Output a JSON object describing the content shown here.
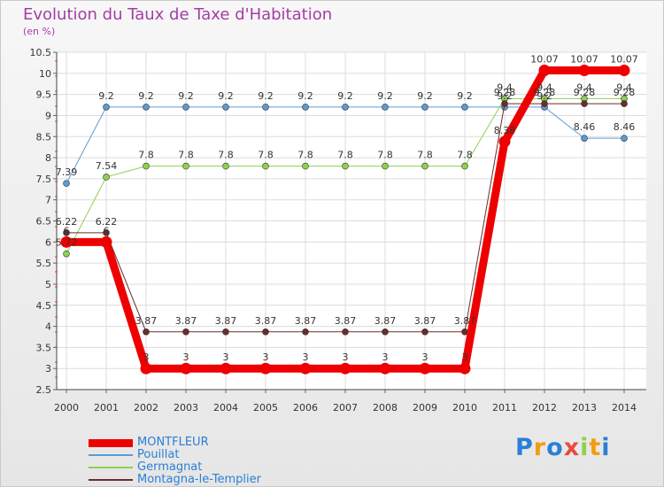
{
  "title": "Evolution du Taux de Taxe d'Habitation",
  "subtitle": "(en %)",
  "colors": {
    "title": "#a63ca6",
    "legend_text": "#2a7fd6",
    "MONTFLEUR": "#ee0000",
    "Pouillat": "#5b9bd5",
    "Germagnat": "#8ed14f",
    "Montagna-le-Templier": "#6b2c2c"
  },
  "logo": {
    "text": "Proxiti",
    "letters": [
      "P",
      "r",
      "o",
      "x",
      "i",
      "t",
      "i"
    ]
  },
  "chart_data": {
    "type": "line",
    "title": "Evolution du Taux de Taxe d'Habitation",
    "ylabel": "(en %)",
    "xlabel": "",
    "ylim": [
      2.5,
      10.5
    ],
    "yticks": [
      "2.5",
      "3",
      "3.5",
      "4",
      "4.5",
      "5",
      "5.5",
      "6",
      "6.5",
      "7",
      "7.5",
      "8",
      "8.5",
      "9",
      "9.5",
      "10",
      "10.5"
    ],
    "categories": [
      "2000",
      "2001",
      "2002",
      "2003",
      "2004",
      "2005",
      "2006",
      "2007",
      "2008",
      "2009",
      "2010",
      "2011",
      "2012",
      "2013",
      "2014"
    ],
    "legend_position": "bottom-left",
    "series": [
      {
        "name": "Pouillat",
        "values": [
          7.39,
          9.2,
          9.2,
          9.2,
          9.2,
          9.2,
          9.2,
          9.2,
          9.2,
          9.2,
          9.2,
          9.2,
          9.2,
          8.46,
          8.46
        ],
        "labels": [
          "7.39",
          "9.2",
          "9.2",
          "9.2",
          "9.2",
          "9.2",
          "9.2",
          "9.2",
          "9.2",
          "9.2",
          "9.2",
          "9.2",
          "9.2",
          "8.46",
          "8.46"
        ]
      },
      {
        "name": "Germagnat",
        "values": [
          5.72,
          7.54,
          7.8,
          7.8,
          7.8,
          7.8,
          7.8,
          7.8,
          7.8,
          7.8,
          7.8,
          9.4,
          9.4,
          9.4,
          9.4
        ],
        "labels": [
          "5.72",
          "7.54",
          "7.8",
          "7.8",
          "7.8",
          "7.8",
          "7.8",
          "7.8",
          "7.8",
          "7.8",
          "7.8",
          "9.4",
          "9.4",
          "9.4",
          "9.4"
        ]
      },
      {
        "name": "Montagna-le-Templier",
        "values": [
          6.22,
          6.22,
          3.87,
          3.87,
          3.87,
          3.87,
          3.87,
          3.87,
          3.87,
          3.87,
          3.87,
          9.28,
          9.28,
          9.28,
          9.28
        ],
        "labels": [
          "6.22",
          "6.22",
          "3.87",
          "3.87",
          "3.87",
          "3.87",
          "3.87",
          "3.87",
          "3.87",
          "3.87",
          "3.87",
          "9.28",
          "9.28",
          "9.28",
          "9.28"
        ]
      },
      {
        "name": "MONTFLEUR",
        "values": [
          6.0,
          6.0,
          3,
          3,
          3,
          3,
          3,
          3,
          3,
          3,
          3,
          8.38,
          10.07,
          10.07,
          10.07
        ],
        "labels": [
          "6",
          "6",
          "3",
          "3",
          "3",
          "3",
          "3",
          "3",
          "3",
          "3",
          "3",
          "8.38",
          "10.07",
          "10.07",
          "10.07"
        ]
      }
    ]
  }
}
